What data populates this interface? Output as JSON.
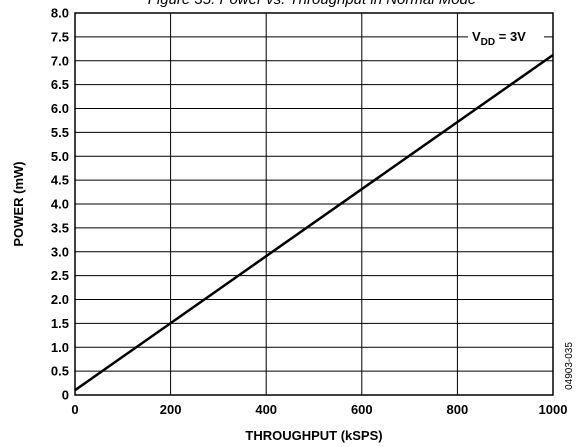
{
  "caption": "Figure 35. Power vs. Throughput in Normal Mode",
  "figure_id": "04903-035",
  "chart_data": {
    "type": "line",
    "title": "",
    "xlabel": "THROUGHPUT (kSPS)",
    "ylabel": "POWER (mW)",
    "xlim": [
      0,
      1000
    ],
    "ylim": [
      0,
      8.0
    ],
    "x_ticks": [
      "0",
      "200",
      "400",
      "600",
      "800",
      "1000"
    ],
    "y_ticks": [
      "0",
      "0.5",
      "1.0",
      "1.5",
      "2.0",
      "2.5",
      "3.0",
      "3.5",
      "4.0",
      "4.5",
      "5.0",
      "5.5",
      "6.0",
      "6.5",
      "7.0",
      "7.5",
      "8.0"
    ],
    "grid": true,
    "annotation": {
      "main": "V",
      "sub": "DD",
      "suffix": " = 3V"
    },
    "series": [
      {
        "x": [
          0,
          1000
        ],
        "y": [
          0.1,
          7.12
        ]
      }
    ]
  }
}
